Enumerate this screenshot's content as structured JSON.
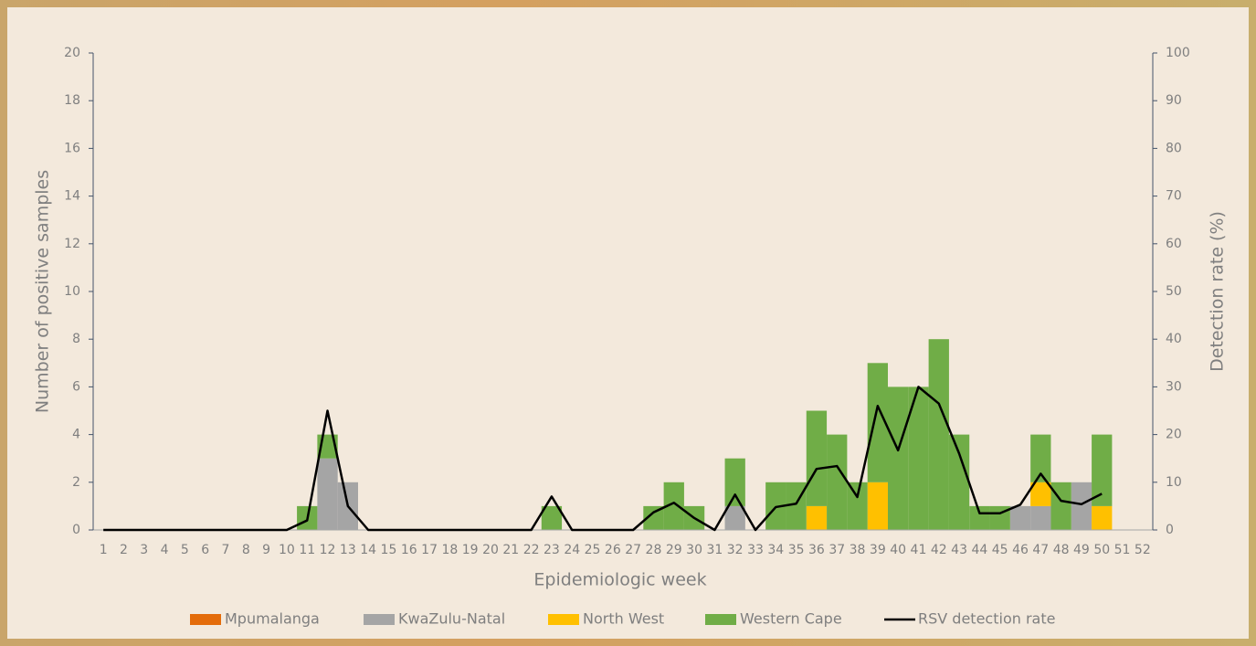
{
  "chart_data": {
    "type": "bar",
    "stacked": true,
    "x_label": "Epidemiologic week",
    "y_label": "Number of  positive samples",
    "y2_label": "Detection rate (%)",
    "categories": [
      "1",
      "2",
      "3",
      "4",
      "5",
      "6",
      "7",
      "8",
      "9",
      "10",
      "11",
      "12",
      "13",
      "14",
      "15",
      "16",
      "17",
      "18",
      "19",
      "20",
      "21",
      "22",
      "23",
      "24",
      "25",
      "26",
      "27",
      "28",
      "29",
      "30",
      "31",
      "32",
      "33",
      "34",
      "35",
      "36",
      "37",
      "38",
      "39",
      "40",
      "41",
      "42",
      "43",
      "44",
      "45",
      "46",
      "47",
      "48",
      "49",
      "50",
      "51",
      "52"
    ],
    "ylim": [
      0,
      20
    ],
    "yticks": [
      0,
      2,
      4,
      6,
      8,
      10,
      12,
      14,
      16,
      18,
      20
    ],
    "y2lim": [
      0,
      100
    ],
    "y2ticks": [
      0,
      10,
      20,
      30,
      40,
      50,
      60,
      70,
      80,
      90,
      100
    ],
    "legend": "bottom",
    "series": [
      {
        "name": "Mpumalanga",
        "color": "#e46c0a",
        "values": [
          0,
          0,
          0,
          0,
          0,
          0,
          0,
          0,
          0,
          0,
          0,
          0,
          0,
          0,
          0,
          0,
          0,
          0,
          0,
          0,
          0,
          0,
          0,
          0,
          0,
          0,
          0,
          0,
          0,
          0,
          0,
          0,
          0,
          0,
          0,
          0,
          0,
          0,
          0,
          0,
          0,
          0,
          0,
          0,
          0,
          0,
          0,
          0,
          0,
          0,
          0,
          0
        ]
      },
      {
        "name": "KwaZulu-Natal",
        "color": "#a5a5a5",
        "values": [
          0,
          0,
          0,
          0,
          0,
          0,
          0,
          0,
          0,
          0,
          0,
          3,
          2,
          0,
          0,
          0,
          0,
          0,
          0,
          0,
          0,
          0,
          0,
          0,
          0,
          0,
          0,
          0,
          0,
          0,
          0,
          1,
          0,
          0,
          0,
          0,
          0,
          0,
          0,
          0,
          0,
          0,
          0,
          0,
          0,
          1,
          1,
          0,
          2,
          0,
          0,
          0
        ]
      },
      {
        "name": "North West",
        "color": "#ffc000",
        "values": [
          0,
          0,
          0,
          0,
          0,
          0,
          0,
          0,
          0,
          0,
          0,
          0,
          0,
          0,
          0,
          0,
          0,
          0,
          0,
          0,
          0,
          0,
          0,
          0,
          0,
          0,
          0,
          0,
          0,
          0,
          0,
          0,
          0,
          0,
          0,
          1,
          0,
          0,
          2,
          0,
          0,
          0,
          0,
          0,
          0,
          0,
          1,
          0,
          0,
          1,
          0,
          0
        ]
      },
      {
        "name": "Western Cape",
        "color": "#70ad47",
        "values": [
          0,
          0,
          0,
          0,
          0,
          0,
          0,
          0,
          0,
          0,
          1,
          1,
          0,
          0,
          0,
          0,
          0,
          0,
          0,
          0,
          0,
          0,
          1,
          0,
          0,
          0,
          0,
          1,
          2,
          1,
          0,
          2,
          0,
          2,
          2,
          4,
          4,
          2,
          5,
          6,
          6,
          8,
          4,
          1,
          1,
          0,
          2,
          2,
          0,
          3,
          0,
          0
        ]
      },
      {
        "name": "RSV detection rate",
        "color": "#000000",
        "type": "line",
        "axis": "y2",
        "values": [
          0,
          0,
          0,
          0,
          0,
          0,
          0,
          0,
          0,
          0,
          2,
          25,
          5,
          0,
          0,
          0,
          0,
          0,
          0,
          0,
          0,
          0,
          7,
          0,
          0,
          0,
          0,
          3.7,
          5.7,
          2.5,
          0,
          7.4,
          0,
          4.8,
          5.5,
          12.8,
          13.4,
          6.9,
          26,
          16.7,
          30,
          26.5,
          16,
          3.5,
          3.5,
          5.3,
          11.8,
          6.1,
          5.4,
          7.6,
          null,
          null
        ]
      }
    ]
  }
}
